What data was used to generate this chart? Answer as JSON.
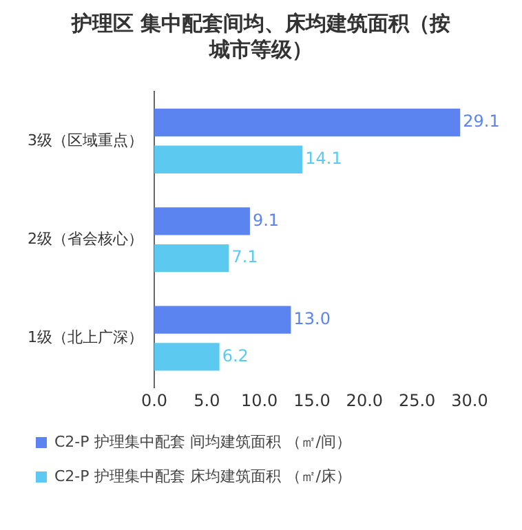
{
  "chart_data": {
    "type": "bar",
    "orientation": "horizontal",
    "title": "护理区 集中配套间均、床均建筑面积（按城市等级）",
    "categories": [
      "3级（区域重点）",
      "2级（省会核心）",
      "1级（北上广深）"
    ],
    "series": [
      {
        "name": "C2-P 护理集中配套 间均建筑面积 （㎡/间）",
        "color": "#5b84f0",
        "values": [
          29.1,
          9.1,
          13.0
        ],
        "value_labels": [
          "29.1",
          "9.1",
          "13.0"
        ]
      },
      {
        "name": "C2-P 护理集中配套 床均建筑面积 （㎡/床）",
        "color": "#5ccaf0",
        "values": [
          14.1,
          7.1,
          6.2
        ],
        "value_labels": [
          "14.1",
          "7.1",
          "6.2"
        ]
      }
    ],
    "xlim": [
      0,
      30
    ],
    "xticks": [
      {
        "value": 0,
        "label": "0.0"
      },
      {
        "value": 5,
        "label": "5.0"
      },
      {
        "value": 10,
        "label": "10.0"
      },
      {
        "value": 15,
        "label": "15.0"
      },
      {
        "value": 20,
        "label": "20.0"
      },
      {
        "value": 25,
        "label": "25.0"
      },
      {
        "value": 30,
        "label": "30.0"
      }
    ],
    "grid": false,
    "legend": "bottom"
  }
}
